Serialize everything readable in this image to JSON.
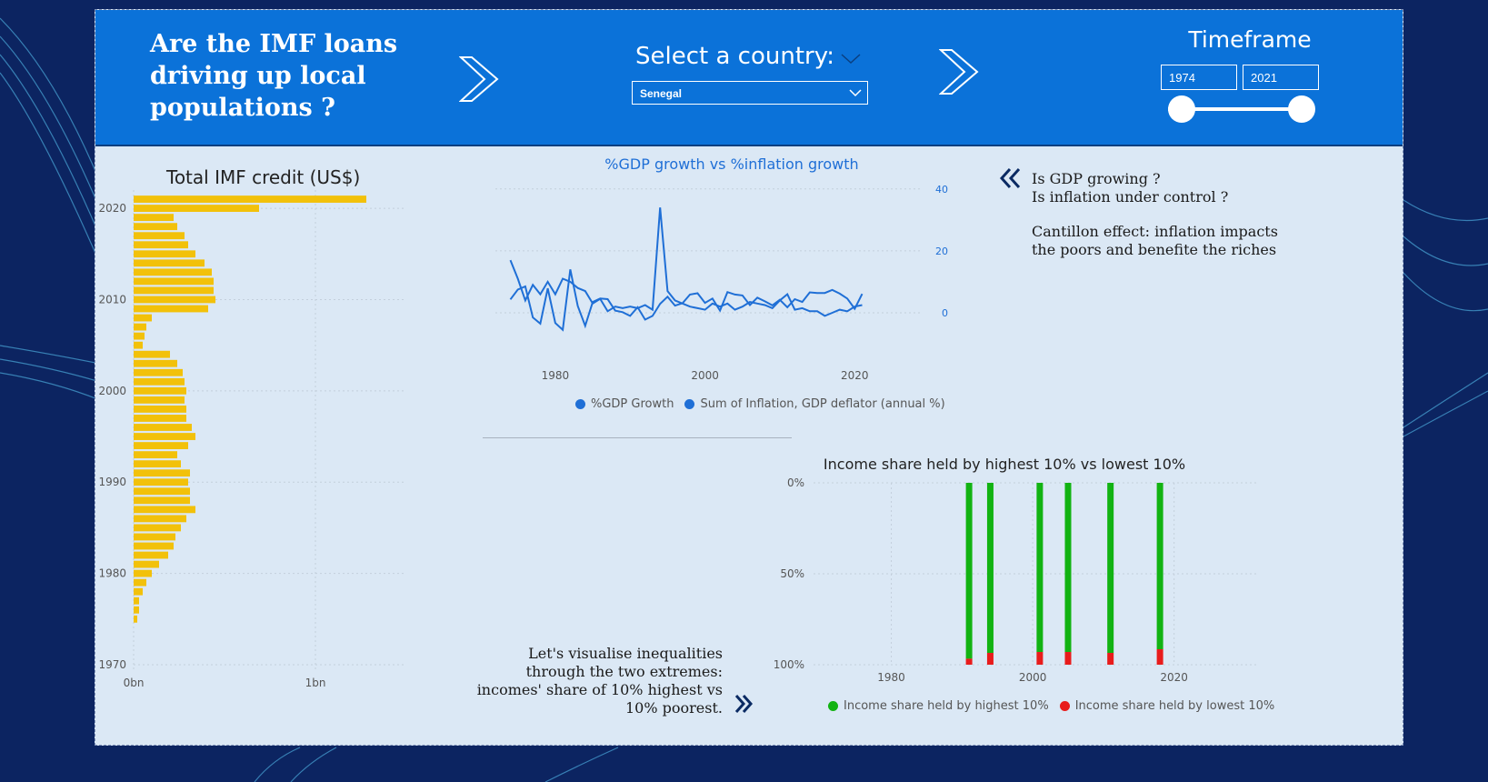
{
  "header": {
    "title": "Are the IMF loans driving up local populations ?",
    "select_label": "Select a country:",
    "country_selected": "Senegal",
    "timeframe_label": "Timeframe",
    "timeframe_start": "1974",
    "timeframe_end": "2021"
  },
  "notes": {
    "gdp_question_1": "Is GDP growing ?",
    "gdp_question_2": "Is inflation under control ?",
    "cantillon_1": "Cantillon effect: inflation impacts",
    "cantillon_2": "the poors and benefite the riches",
    "inequality_1": "Let's visualise inequalities",
    "inequality_2": "through the two extremes:",
    "inequality_3": "incomes' share of 10% highest vs",
    "inequality_4": "10% poorest."
  },
  "colors": {
    "header_bg": "#0b72d9",
    "imf_bar": "#f2c10a",
    "line_series": "#1f6fd6",
    "highest_share": "#12b312",
    "lowest_share": "#e81c1c"
  },
  "chart_data": [
    {
      "id": "imf_credit",
      "type": "bar",
      "orientation": "horizontal",
      "title": "Total IMF credit (US$)",
      "x_ticks": [
        "0bn",
        "1bn"
      ],
      "y_ticks": [
        "2020",
        "2010",
        "2000",
        "1990",
        "1980",
        "1970"
      ],
      "xlim": [
        0,
        1.5
      ],
      "ylim": [
        1970,
        2022
      ],
      "grid": true,
      "series": [
        {
          "years": [
            1975,
            1976,
            1977,
            1978,
            1979,
            1980,
            1981,
            1982,
            1983,
            1984,
            1985,
            1986,
            1987,
            1988,
            1989,
            1990,
            1991,
            1992,
            1993,
            1994,
            1995,
            1996,
            1997,
            1998,
            1999,
            2000,
            2001,
            2002,
            2003,
            2004,
            2005,
            2006,
            2007,
            2008,
            2009,
            2010,
            2011,
            2012,
            2013,
            2014,
            2015,
            2016,
            2017,
            2018,
            2019,
            2020,
            2021
          ],
          "values": [
            0.02,
            0.03,
            0.03,
            0.05,
            0.07,
            0.1,
            0.14,
            0.19,
            0.22,
            0.23,
            0.26,
            0.29,
            0.34,
            0.31,
            0.31,
            0.3,
            0.31,
            0.26,
            0.24,
            0.3,
            0.34,
            0.32,
            0.29,
            0.29,
            0.28,
            0.29,
            0.28,
            0.27,
            0.24,
            0.2,
            0.05,
            0.06,
            0.07,
            0.1,
            0.41,
            0.45,
            0.44,
            0.44,
            0.43,
            0.39,
            0.34,
            0.3,
            0.28,
            0.24,
            0.22,
            0.69,
            1.28
          ]
        }
      ]
    },
    {
      "id": "gdp_vs_inflation",
      "type": "line",
      "title": "%GDP growth vs %inflation growth",
      "x_ticks": [
        "1980",
        "2000",
        "2020"
      ],
      "y_ticks": [
        "40",
        "20",
        "0"
      ],
      "xlim": [
        1972,
        2023
      ],
      "ylim": [
        -5,
        42
      ],
      "y_axis_side": "right",
      "grid": true,
      "legend": "bottom",
      "series": [
        {
          "name": "%GDP Growth",
          "x": [
            1974,
            1975,
            1976,
            1977,
            1978,
            1979,
            1980,
            1981,
            1982,
            1983,
            1984,
            1985,
            1986,
            1987,
            1988,
            1989,
            1990,
            1991,
            1992,
            1993,
            1994,
            1995,
            1996,
            1997,
            1998,
            1999,
            2000,
            2001,
            2002,
            2003,
            2004,
            2005,
            2006,
            2007,
            2008,
            2009,
            2010,
            2011,
            2012,
            2013,
            2014,
            2015,
            2016,
            2017,
            2018,
            2019,
            2020,
            2021
          ],
          "values": [
            4.3,
            7.5,
            8.5,
            -1.5,
            -3.5,
            7.9,
            -3.3,
            -5.5,
            14,
            2.2,
            -4.2,
            3.5,
            4.6,
            4.4,
            0.7,
            0.2,
            -1,
            1.8,
            -2.2,
            -1,
            2.9,
            5.2,
            2.3,
            3.1,
            5.9,
            6.3,
            3.2,
            4.6,
            0.7,
            6.7,
            5.9,
            5.6,
            2.5,
            4.9,
            3.7,
            2.4,
            4.2,
            1.8,
            4.4,
            3.5,
            6.6,
            6.4,
            6.4,
            7.4,
            6.2,
            4.6,
            1.3,
            6.1
          ]
        },
        {
          "name": "Sum of Inflation, GDP deflator (annual %)",
          "x": [
            1974,
            1975,
            1976,
            1977,
            1978,
            1979,
            1980,
            1981,
            1982,
            1983,
            1984,
            1985,
            1986,
            1987,
            1988,
            1989,
            1990,
            1991,
            1992,
            1993,
            1994,
            1995,
            1996,
            1997,
            1998,
            1999,
            2000,
            2001,
            2002,
            2003,
            2004,
            2005,
            2006,
            2007,
            2008,
            2009,
            2010,
            2011,
            2012,
            2013,
            2014,
            2015,
            2016,
            2017,
            2018,
            2019,
            2020,
            2021
          ],
          "values": [
            17,
            11,
            4,
            9,
            6,
            10,
            6,
            11,
            10,
            8,
            7,
            3,
            4.5,
            0.5,
            2,
            1.5,
            2,
            1.5,
            2.5,
            1,
            34,
            7,
            4,
            3,
            2,
            1.5,
            1,
            3,
            2,
            3,
            1,
            2,
            3.5,
            3,
            2.5,
            1.5,
            4,
            6,
            1,
            1.5,
            0.5,
            0.5,
            -1,
            0,
            1,
            0.5,
            2,
            2.5
          ]
        }
      ]
    },
    {
      "id": "income_share",
      "type": "bar",
      "orientation": "vertical",
      "stacked": true,
      "title": "Income share held by highest 10% vs lowest 10%",
      "x_ticks": [
        "1980",
        "2000",
        "2020"
      ],
      "y_ticks": [
        "0%",
        "50%",
        "100%"
      ],
      "xlim": [
        1969,
        2032
      ],
      "ylim": [
        0,
        100
      ],
      "y_inverted": true,
      "grid": true,
      "legend": "bottom",
      "series": [
        {
          "name": "Income share held by highest 10%",
          "x": [
            1991,
            1994,
            2001,
            2005,
            2011,
            2018
          ],
          "values": [
            96.7,
            93.5,
            93.0,
            93.0,
            93.5,
            91.5
          ]
        },
        {
          "name": "Income share held by lowest 10%",
          "x": [
            1991,
            1994,
            2001,
            2005,
            2011,
            2018
          ],
          "values": [
            3.3,
            6.5,
            7.0,
            7.0,
            6.5,
            8.5
          ]
        }
      ]
    }
  ]
}
